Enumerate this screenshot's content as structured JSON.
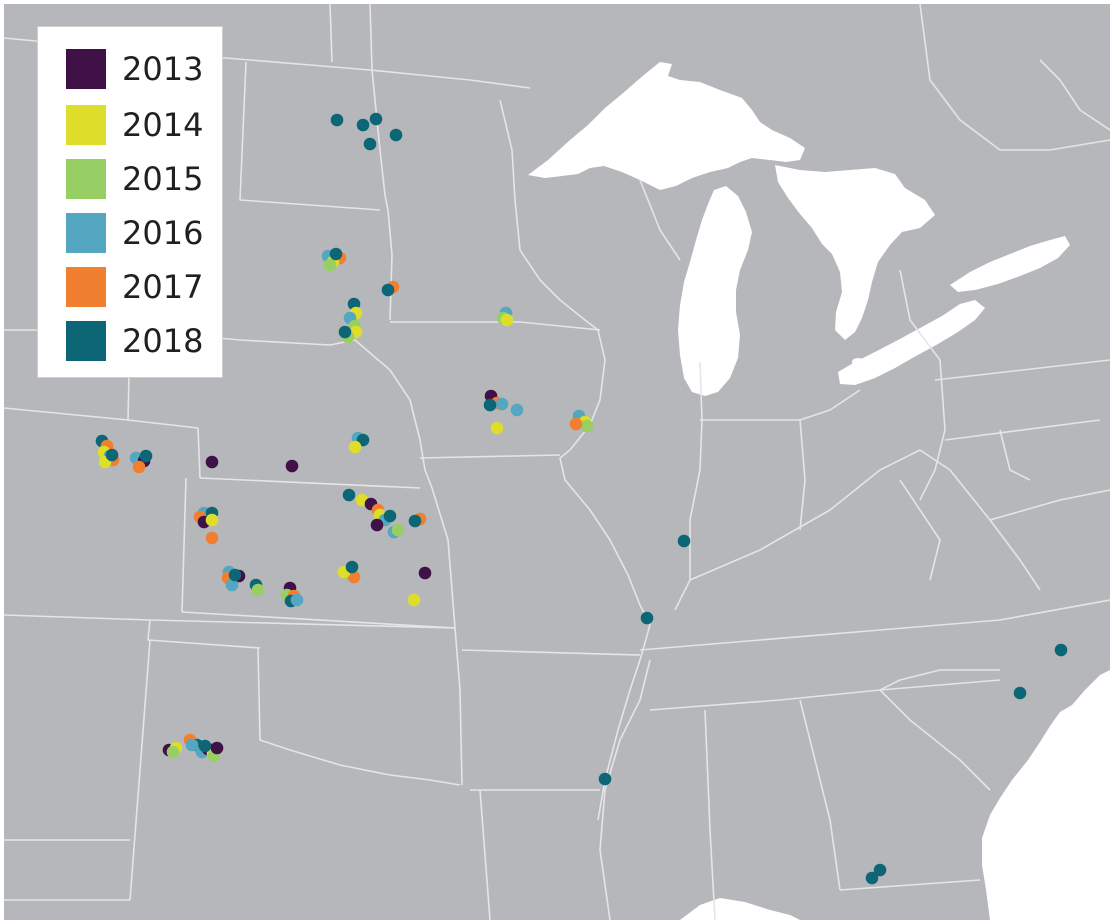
{
  "colors": {
    "land": "#b5b7ba",
    "border": "#e4e5e6",
    "water": "#ffffff"
  },
  "legend": {
    "items": [
      {
        "year": "2013",
        "color": "#3f1147"
      },
      {
        "year": "2014",
        "color": "#dedd2a"
      },
      {
        "year": "2015",
        "color": "#98cf64"
      },
      {
        "year": "2016",
        "color": "#55a6c0"
      },
      {
        "year": "2017",
        "color": "#f0802f"
      },
      {
        "year": "2018",
        "color": "#0d6676"
      }
    ]
  }
}
